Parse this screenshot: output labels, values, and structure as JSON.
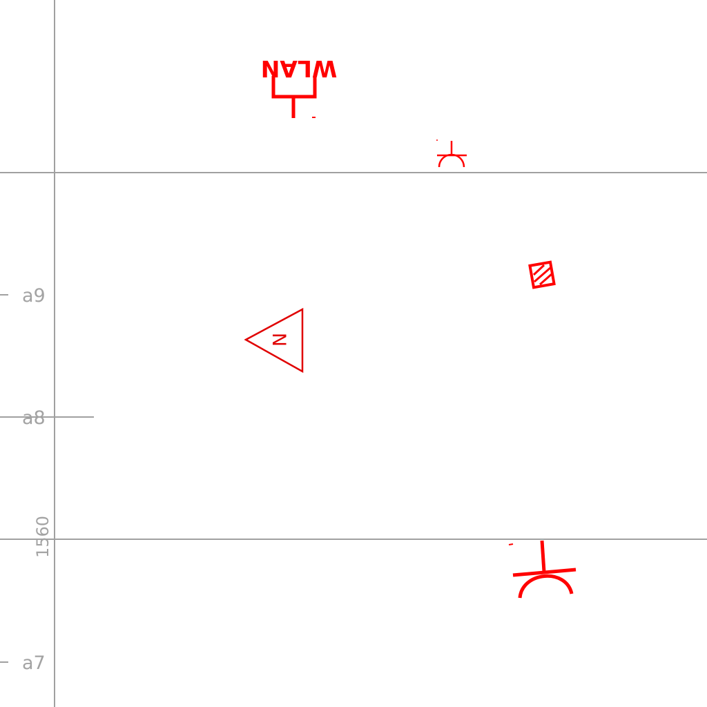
{
  "grid": {
    "line_color": "#a0a0a0",
    "row_labels": [
      "a9",
      "a8",
      "a7"
    ],
    "dimension_label": "1560"
  },
  "symbols": {
    "color": "#ff0000",
    "wlan_antenna": {
      "label": "WLAN",
      "icon": "wlan-antenna-icon"
    },
    "network_outlet_small": {
      "icon": "network-outlet-icon"
    },
    "network_outlet_large": {
      "icon": "network-outlet-icon"
    },
    "hatched_box": {
      "icon": "hatched-box-icon"
    },
    "triangle_marker": {
      "label": "N",
      "icon": "triangle-marker-icon"
    }
  }
}
